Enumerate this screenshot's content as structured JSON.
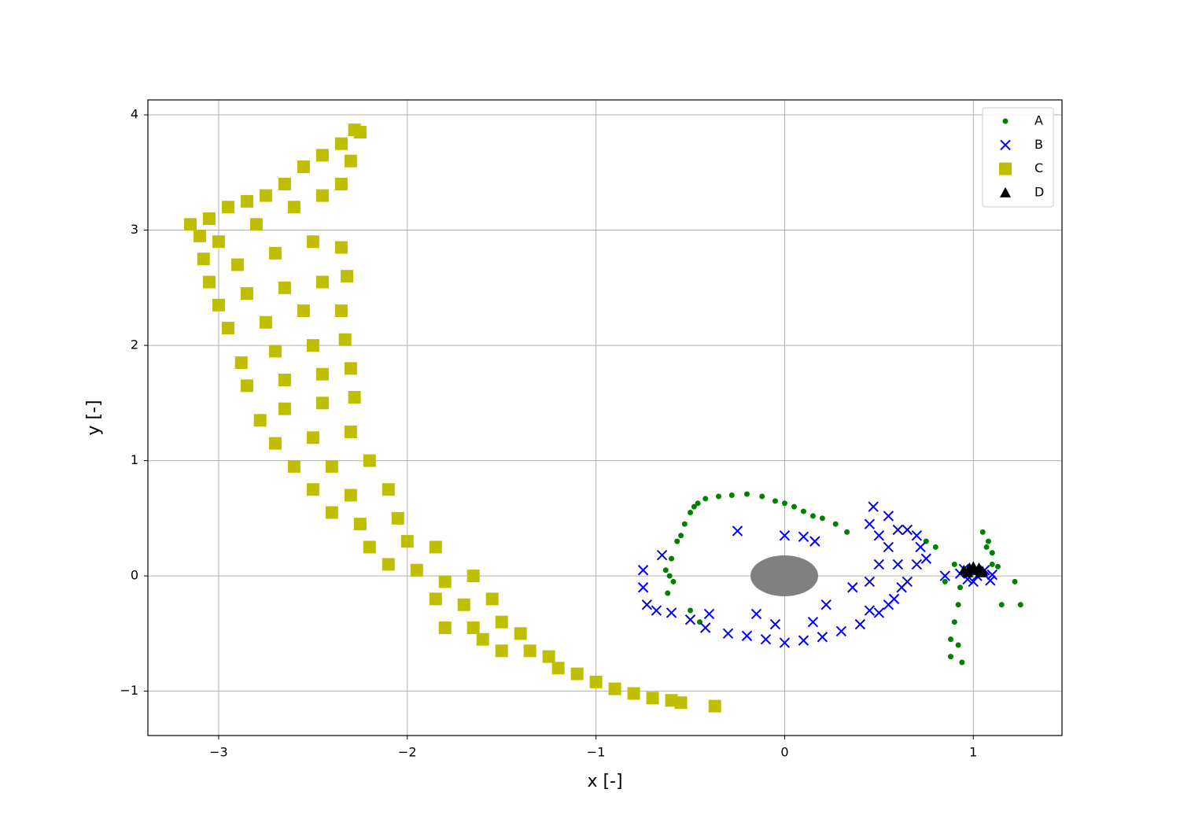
{
  "chart_data": {
    "type": "scatter",
    "xlabel": "x [-]",
    "ylabel": "y [-]",
    "xlim": [
      -3.375,
      1.47
    ],
    "ylim": [
      -1.385,
      4.13
    ],
    "xticks": [
      {
        "value": -3,
        "label": "−3"
      },
      {
        "value": -2,
        "label": "−2"
      },
      {
        "value": -1,
        "label": "−1"
      },
      0,
      1
    ],
    "yticks": [
      {
        "value": -1,
        "label": "−1"
      },
      0,
      1,
      2,
      3,
      4
    ],
    "grid": true,
    "legend": "upper right",
    "series": [
      {
        "name": "A",
        "color": "#008000",
        "marker": "circle",
        "x": [
          -0.62,
          -0.61,
          -0.6,
          -0.57,
          -0.53,
          -0.5,
          -0.46,
          -0.42,
          -0.35,
          -0.28,
          -0.2,
          -0.12,
          -0.05,
          0.0,
          0.05,
          0.1,
          0.15,
          0.2,
          0.27,
          0.33,
          -0.63,
          -0.59,
          -0.55,
          -0.48,
          1.08,
          1.05,
          1.1,
          1.1,
          1.07,
          0.9,
          0.93,
          0.92,
          0.9,
          0.88,
          0.92,
          0.88,
          0.94,
          0.85,
          1.15,
          1.22,
          1.25,
          1.13,
          0.8,
          0.75,
          -0.45,
          -0.5
        ],
        "y": [
          -0.15,
          0.0,
          0.15,
          0.3,
          0.45,
          0.55,
          0.63,
          0.67,
          0.69,
          0.7,
          0.71,
          0.69,
          0.65,
          0.63,
          0.6,
          0.56,
          0.52,
          0.5,
          0.45,
          0.38,
          0.05,
          -0.05,
          0.35,
          0.6,
          0.3,
          0.38,
          0.2,
          0.1,
          0.25,
          0.1,
          -0.1,
          -0.25,
          -0.4,
          -0.55,
          -0.6,
          -0.7,
          -0.75,
          -0.05,
          -0.25,
          -0.05,
          -0.25,
          0.08,
          0.25,
          0.3,
          -0.4,
          -0.3
        ]
      },
      {
        "name": "B",
        "color": "#0000ff",
        "marker": "x",
        "x": [
          -0.75,
          -0.75,
          -0.73,
          -0.68,
          -0.6,
          -0.5,
          -0.42,
          -0.3,
          -0.2,
          -0.1,
          0.0,
          0.1,
          0.2,
          0.3,
          0.4,
          0.5,
          0.58,
          0.65,
          0.7,
          0.72,
          0.65,
          0.55,
          0.47,
          0.45,
          0.5,
          0.55,
          0.6,
          0.62,
          0.55,
          0.45,
          0.6,
          0.7,
          0.75,
          0.5,
          0.45,
          -0.25,
          0.0,
          0.1,
          0.16,
          0.36,
          -0.65,
          -0.4,
          0.22,
          0.93,
          0.97,
          1.02,
          1.06,
          1.09,
          0.95,
          1.0,
          0.85,
          1.1,
          -0.15,
          -0.05,
          0.15
        ],
        "y": [
          0.05,
          -0.1,
          -0.25,
          -0.3,
          -0.32,
          -0.38,
          -0.45,
          -0.5,
          -0.52,
          -0.55,
          -0.58,
          -0.56,
          -0.53,
          -0.48,
          -0.42,
          -0.32,
          -0.2,
          -0.05,
          0.1,
          0.25,
          0.4,
          0.52,
          0.6,
          0.45,
          0.35,
          0.25,
          0.1,
          -0.1,
          -0.25,
          -0.3,
          0.4,
          0.35,
          0.15,
          0.1,
          -0.05,
          0.39,
          0.35,
          0.34,
          0.3,
          -0.1,
          0.18,
          -0.33,
          -0.25,
          0.02,
          -0.03,
          0.0,
          0.05,
          -0.04,
          0.06,
          -0.05,
          0.0,
          0.01,
          -0.33,
          -0.42,
          -0.4
        ]
      },
      {
        "name": "C",
        "color": "#bfbf00",
        "marker": "square",
        "x": [
          -3.15,
          -3.1,
          -3.05,
          -2.95,
          -2.85,
          -2.75,
          -2.65,
          -2.55,
          -2.45,
          -2.35,
          -2.28,
          -2.25,
          -2.3,
          -2.35,
          -2.45,
          -2.6,
          -2.8,
          -3.0,
          -3.08,
          -3.05,
          -2.9,
          -2.7,
          -2.5,
          -2.35,
          -2.32,
          -2.45,
          -2.65,
          -2.85,
          -3.0,
          -2.95,
          -2.75,
          -2.55,
          -2.35,
          -2.33,
          -2.5,
          -2.7,
          -2.88,
          -2.85,
          -2.65,
          -2.45,
          -2.3,
          -2.28,
          -2.45,
          -2.65,
          -2.78,
          -2.7,
          -2.5,
          -2.3,
          -2.2,
          -2.4,
          -2.6,
          -2.5,
          -2.3,
          -2.1,
          -2.05,
          -2.25,
          -2.4,
          -2.2,
          -2.0,
          -1.85,
          -1.95,
          -2.1,
          -1.8,
          -1.65,
          -1.85,
          -1.7,
          -1.55,
          -1.5,
          -1.65,
          -1.4,
          -1.35,
          -1.5,
          -1.25,
          -1.1,
          -1.0,
          -0.9,
          -0.8,
          -0.7,
          -0.6,
          -0.55,
          -0.37,
          -1.2,
          -1.6,
          -1.8
        ],
        "y": [
          3.05,
          2.95,
          3.1,
          3.2,
          3.25,
          3.3,
          3.4,
          3.55,
          3.65,
          3.75,
          3.87,
          3.85,
          3.6,
          3.4,
          3.3,
          3.2,
          3.05,
          2.9,
          2.75,
          2.55,
          2.7,
          2.8,
          2.9,
          2.85,
          2.6,
          2.55,
          2.5,
          2.45,
          2.35,
          2.15,
          2.2,
          2.3,
          2.3,
          2.05,
          2.0,
          1.95,
          1.85,
          1.65,
          1.7,
          1.75,
          1.8,
          1.55,
          1.5,
          1.45,
          1.35,
          1.15,
          1.2,
          1.25,
          1.0,
          0.95,
          0.95,
          0.75,
          0.7,
          0.75,
          0.5,
          0.45,
          0.55,
          0.25,
          0.3,
          0.25,
          0.05,
          0.1,
          -0.05,
          0.0,
          -0.2,
          -0.25,
          -0.2,
          -0.4,
          -0.45,
          -0.5,
          -0.65,
          -0.65,
          -0.7,
          -0.85,
          -0.92,
          -0.98,
          -1.02,
          -1.06,
          -1.08,
          -1.1,
          -1.13,
          -0.8,
          -0.55,
          -0.45
        ]
      },
      {
        "name": "D",
        "color": "#000000",
        "marker": "triangle",
        "x": [
          0.95,
          0.98,
          1.01,
          1.03,
          1.05,
          0.97,
          1.0,
          1.04
        ],
        "y": [
          0.05,
          0.07,
          0.05,
          0.07,
          0.04,
          0.03,
          0.08,
          0.03
        ]
      }
    ]
  }
}
